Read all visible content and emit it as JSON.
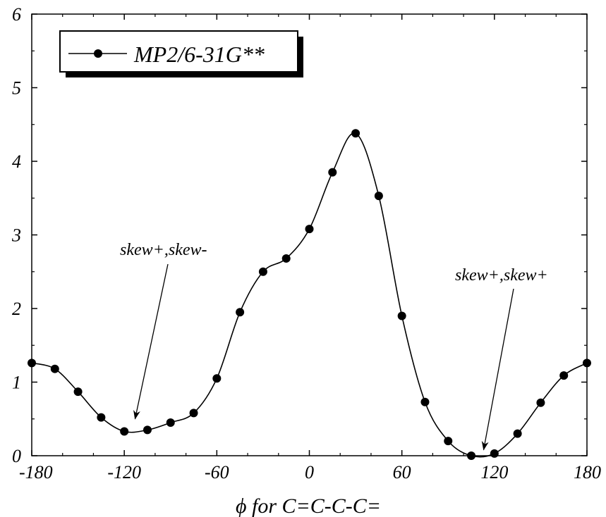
{
  "chart_data": {
    "type": "line",
    "title": "",
    "xlabel": "ϕ for C=C-C-C=",
    "ylabel": "",
    "xlim": [
      -180,
      180
    ],
    "ylim": [
      0,
      6
    ],
    "xticks": [
      -180,
      -120,
      -60,
      0,
      60,
      120,
      180
    ],
    "yticks": [
      0,
      1,
      2,
      3,
      4,
      5,
      6
    ],
    "xtick_labels": [
      "-180",
      "-120",
      "-60",
      "0",
      "60",
      "120",
      "180"
    ],
    "ytick_labels": [
      "0",
      "1",
      "2",
      "3",
      "4",
      "5",
      "6"
    ],
    "grid": false,
    "legend": {
      "position": "top-left",
      "framed": true,
      "shadow": true
    },
    "series": [
      {
        "name": "MP2/6-31G**",
        "marker": "circle",
        "smooth": true,
        "color": "#000000",
        "x": [
          -180,
          -165,
          -150,
          -135,
          -120,
          -105,
          -90,
          -75,
          -60,
          -45,
          -30,
          -15,
          0,
          15,
          30,
          45,
          60,
          75,
          90,
          105,
          120,
          135,
          150,
          165,
          180
        ],
        "y": [
          1.26,
          1.18,
          0.87,
          0.52,
          0.33,
          0.35,
          0.45,
          0.58,
          1.05,
          1.95,
          2.5,
          2.68,
          3.08,
          3.85,
          4.38,
          3.53,
          1.9,
          0.73,
          0.2,
          0.0,
          0.03,
          0.3,
          0.72,
          1.09,
          1.26
        ]
      }
    ],
    "annotations": [
      {
        "text": "skew+,skew-",
        "x": -113,
        "y": 0.5
      },
      {
        "text": "skew+,skew+",
        "x": 113,
        "y": 0.08
      }
    ]
  }
}
